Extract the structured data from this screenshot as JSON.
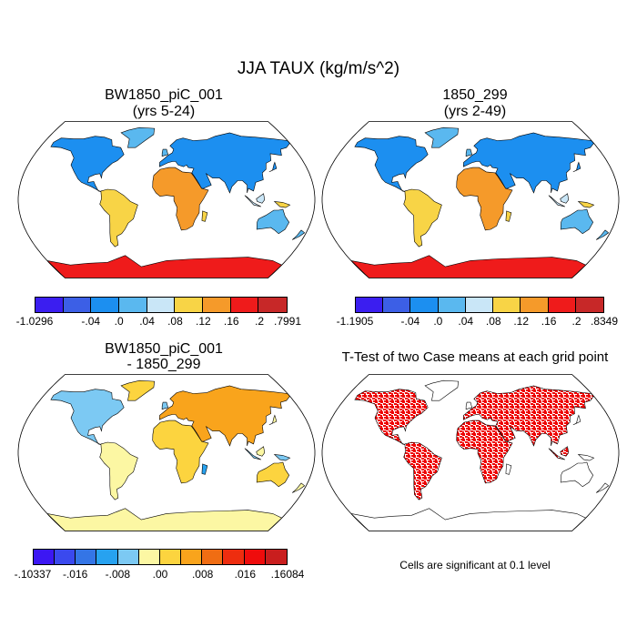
{
  "title": "JJA TAUX (kg/m/s^2)",
  "panels": [
    {
      "title": "BW1850_piC_001",
      "subtitle": "(yrs 5-24)"
    },
    {
      "title": "1850_299",
      "subtitle": "(yrs 2-49)"
    },
    {
      "title": "BW1850_piC_001",
      "subtitle": "- 1850_299"
    },
    {
      "title": "T-Test of two Case means at each grid point",
      "subtitle": ""
    }
  ],
  "note": "Cells are significant at 0.1 level",
  "colorbars": [
    {
      "colors": [
        "#3b1ef0",
        "#3c5fe6",
        "#1c8ff0",
        "#5ab8ef",
        "#c9e6f7",
        "#f8d446",
        "#f59a2a",
        "#ef1b1b",
        "#c72828"
      ],
      "labels": [
        "-1.0296",
        "-.04",
        ".0",
        ".04",
        ".08",
        ".12",
        ".16",
        ".2",
        ".7991"
      ]
    },
    {
      "colors": [
        "#3b1ef0",
        "#3c5fe6",
        "#1c8ff0",
        "#5ab8ef",
        "#c9e6f7",
        "#f8d446",
        "#f59a2a",
        "#ef1b1b",
        "#c72828"
      ],
      "labels": [
        "-1.1905",
        "-.04",
        ".0",
        ".04",
        ".08",
        ".12",
        ".16",
        ".2",
        ".8349"
      ]
    },
    {
      "colors": [
        "#3c17f3",
        "#3a49ee",
        "#3475e6",
        "#27a2f0",
        "#7cc9f3",
        "#fcf7a3",
        "#fcd43f",
        "#f9a41c",
        "#f06d13",
        "#ee2d0f",
        "#ef0c0c",
        "#c91e1e"
      ],
      "labels": [
        "-.10337",
        "-.016",
        "-.008",
        ".00",
        ".008",
        ".016",
        ".16084"
      ]
    }
  ],
  "map_colors": {
    "ocean": "#ffffff",
    "coast": "#000000",
    "t_test_sig": "#ee0000"
  }
}
